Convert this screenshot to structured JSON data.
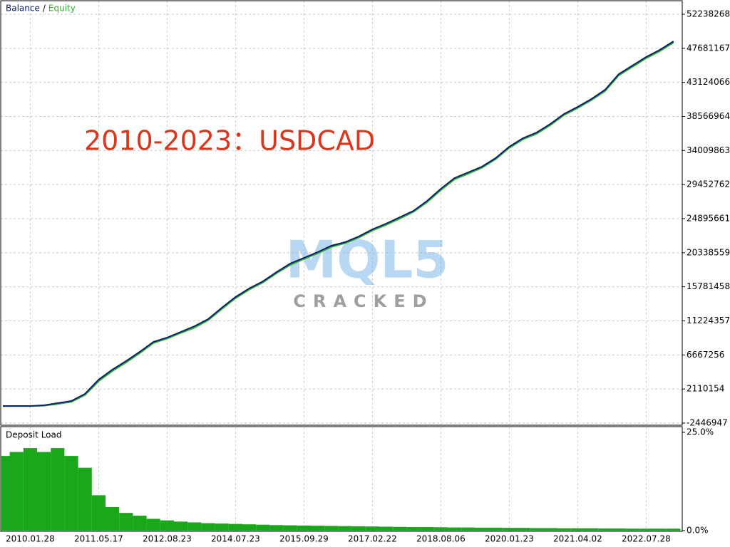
{
  "chart_data": [
    {
      "type": "line",
      "legend_separator": "/",
      "annotation": "2010-2023：USDCAD",
      "watermark": "MQL5",
      "watermark_sub": "CRACKED",
      "categories": [
        null,
        null,
        "2010.01.28",
        null,
        null,
        null,
        null,
        "2011.05.17",
        null,
        null,
        null,
        null,
        "2012.08.23",
        null,
        null,
        null,
        null,
        "2014.07.23",
        null,
        null,
        null,
        null,
        "2015.09.29",
        null,
        null,
        null,
        null,
        "2017.02.22",
        null,
        null,
        null,
        null,
        "2018.08.06",
        null,
        null,
        null,
        null,
        "2020.01.23",
        null,
        null,
        null,
        null,
        "2021.04.02",
        null,
        null,
        null,
        null,
        "2022.07.28",
        null,
        null
      ],
      "series": [
        {
          "name": "Balance",
          "color": "#0b1f6b",
          "values": [
            -161000,
            -161000,
            -161000,
            -66000,
            220000,
            506000,
            1459000,
            3364000,
            4698000,
            5842000,
            7080000,
            8414000,
            8986000,
            9748000,
            10510000,
            11463000,
            12987000,
            14416000,
            15559000,
            16512000,
            17751000,
            18894000,
            19656000,
            20418000,
            21276000,
            21752000,
            22514000,
            23467000,
            24229000,
            25087000,
            25944000,
            27278000,
            28898000,
            30327000,
            31089000,
            31851000,
            32994000,
            34519000,
            35662000,
            36424000,
            37567000,
            38901000,
            39854000,
            40902000,
            42141000,
            44237000,
            45380000,
            46523000,
            47476000,
            48619000
          ]
        },
        {
          "name": "Equity",
          "color": "#2bb02b",
          "values": [
            -200000,
            -190000,
            -180000,
            -120000,
            100000,
            380000,
            1300000,
            3150000,
            4500000,
            5650000,
            6900000,
            8250000,
            8850000,
            9600000,
            10300000,
            11300000,
            12800000,
            14250000,
            15400000,
            16350000,
            17600000,
            18700000,
            19500000,
            20250000,
            21100000,
            21600000,
            22350000,
            23300000,
            24050000,
            24900000,
            25800000,
            27100000,
            28700000,
            30150000,
            30900000,
            31700000,
            32850000,
            34350000,
            35500000,
            36250000,
            37400000,
            38750000,
            39700000,
            40750000,
            41950000,
            44050000,
            45200000,
            46350000,
            47300000,
            48450000
          ]
        }
      ],
      "ylim": [
        -2733000,
        54145000
      ],
      "yticks": [
        {
          "value": 52238268,
          "label": "52238268"
        },
        {
          "value": 47681167,
          "label": "47681167"
        },
        {
          "value": 43124066,
          "label": "43124066"
        },
        {
          "value": 38566964,
          "label": "38566964"
        },
        {
          "value": 34009863,
          "label": "34009863"
        },
        {
          "value": 29452762,
          "label": "29452762"
        },
        {
          "value": 24895661,
          "label": "24895661"
        },
        {
          "value": 20338559,
          "label": "20338559"
        },
        {
          "value": 15781458,
          "label": "15781458"
        },
        {
          "value": 11224357,
          "label": "11224357"
        },
        {
          "value": 6667256,
          "label": "6667256"
        },
        {
          "value": 2110154,
          "label": "2110154"
        },
        {
          "value": -2446947,
          "label": "-2446947"
        }
      ],
      "grid": true
    },
    {
      "type": "bar",
      "title": "Deposit Load",
      "color": "#1aa81a",
      "values": [
        19,
        20,
        21,
        20,
        21,
        19,
        16,
        9,
        6,
        4.5,
        3.8,
        3,
        2.6,
        2.3,
        2.1,
        1.9,
        1.8,
        1.7,
        1.6,
        1.5,
        1.4,
        1.35,
        1.3,
        1.25,
        1.2,
        1.15,
        1.1,
        1.05,
        1,
        0.95,
        0.9,
        0.9,
        0.85,
        0.8,
        0.8,
        0.75,
        0.75,
        0.7,
        0.7,
        0.65,
        0.65,
        0.6,
        0.6,
        0.6,
        0.55,
        0.55,
        0.5,
        0.5,
        0.5,
        0.5
      ],
      "ylim": [
        0,
        25
      ],
      "yticks": [
        {
          "value": 0,
          "label": "0.0%"
        },
        {
          "value": 25,
          "label": "25.0%"
        }
      ],
      "grid": true
    }
  ]
}
